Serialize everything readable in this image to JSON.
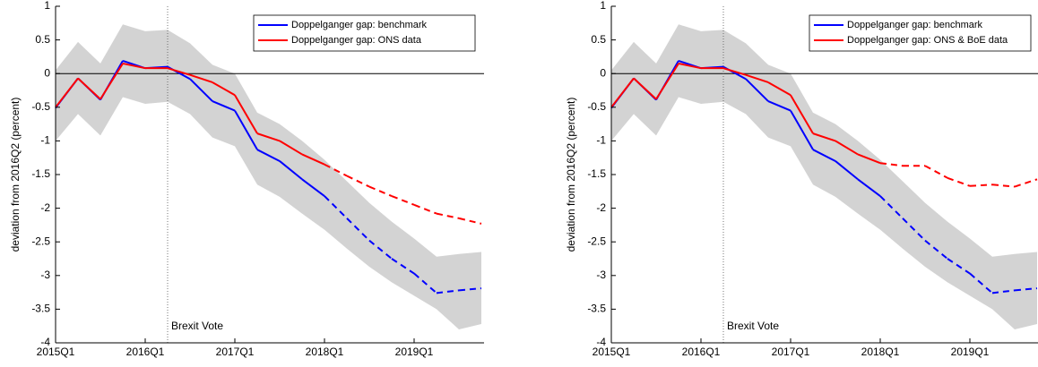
{
  "chart_data": [
    {
      "type": "line",
      "categories": [
        "2015Q1",
        null,
        null,
        null,
        "2016Q1",
        null,
        null,
        null,
        "2017Q1",
        null,
        null,
        null,
        "2018Q1",
        null,
        null,
        null,
        "2019Q1",
        null,
        null,
        null
      ],
      "ylabel": "deviation from 2016Q2 (percent)",
      "ylim": [
        -4,
        1
      ],
      "yticks": [
        -4,
        -3.5,
        -3,
        -2.5,
        -2,
        -1.5,
        -1,
        -0.5,
        0,
        0.5,
        1
      ],
      "vline": 5,
      "annotation": "Brexit Vote",
      "legend": "upper right",
      "band": {
        "color": "#d3d3d3",
        "upper": [
          0.05,
          0.47,
          0.15,
          0.73,
          0.63,
          0.65,
          0.45,
          0.13,
          0.0,
          -0.58,
          -0.75,
          -1.0,
          -1.28,
          -1.6,
          -1.92,
          -2.2,
          -2.45,
          -2.72,
          -2.68,
          -2.65
        ],
        "lower": [
          -1.0,
          -0.6,
          -0.92,
          -0.35,
          -0.45,
          -0.42,
          -0.6,
          -0.95,
          -1.08,
          -1.65,
          -1.83,
          -2.08,
          -2.32,
          -2.6,
          -2.87,
          -3.1,
          -3.3,
          -3.5,
          -3.8,
          -3.72
        ]
      },
      "series": [
        {
          "name": "Doppelganger gap: benchmark",
          "color": "#0000ff",
          "dash_from": 12,
          "values": [
            -0.51,
            -0.07,
            -0.39,
            0.19,
            0.08,
            0.1,
            -0.08,
            -0.41,
            -0.55,
            -1.13,
            -1.3,
            -1.57,
            -1.82,
            -2.15,
            -2.48,
            -2.75,
            -2.97,
            -3.26,
            -3.22,
            -3.19
          ]
        },
        {
          "name": "Doppelganger gap: ONS data",
          "color": "#ff0000",
          "dash_from": 12,
          "values": [
            -0.5,
            -0.07,
            -0.38,
            0.15,
            0.08,
            0.08,
            -0.02,
            -0.13,
            -0.32,
            -0.89,
            -1.0,
            -1.2,
            -1.35,
            -1.52,
            -1.68,
            -1.82,
            -1.95,
            -2.08,
            -2.15,
            -2.23
          ]
        }
      ]
    },
    {
      "type": "line",
      "categories": [
        "2015Q1",
        null,
        null,
        null,
        "2016Q1",
        null,
        null,
        null,
        "2017Q1",
        null,
        null,
        null,
        "2018Q1",
        null,
        null,
        null,
        "2019Q1",
        null,
        null,
        null
      ],
      "ylabel": "deviation from 2016Q2 (percent)",
      "ylim": [
        -4,
        1
      ],
      "yticks": [
        -4,
        -3.5,
        -3,
        -2.5,
        -2,
        -1.5,
        -1,
        -0.5,
        0,
        0.5,
        1
      ],
      "vline": 5,
      "annotation": "Brexit Vote",
      "legend": "upper right",
      "band": {
        "color": "#d3d3d3",
        "upper": [
          0.05,
          0.47,
          0.15,
          0.73,
          0.63,
          0.65,
          0.45,
          0.13,
          0.0,
          -0.58,
          -0.75,
          -1.0,
          -1.28,
          -1.6,
          -1.92,
          -2.2,
          -2.45,
          -2.72,
          -2.68,
          -2.65
        ],
        "lower": [
          -1.0,
          -0.6,
          -0.92,
          -0.35,
          -0.45,
          -0.42,
          -0.6,
          -0.95,
          -1.08,
          -1.65,
          -1.83,
          -2.08,
          -2.32,
          -2.6,
          -2.87,
          -3.1,
          -3.3,
          -3.5,
          -3.8,
          -3.72
        ]
      },
      "series": [
        {
          "name": "Doppelganger gap: benchmark",
          "color": "#0000ff",
          "dash_from": 12,
          "values": [
            -0.51,
            -0.07,
            -0.39,
            0.19,
            0.08,
            0.1,
            -0.08,
            -0.41,
            -0.55,
            -1.13,
            -1.3,
            -1.57,
            -1.82,
            -2.15,
            -2.48,
            -2.75,
            -2.97,
            -3.26,
            -3.22,
            -3.19
          ]
        },
        {
          "name": "Doppelganger gap: ONS & BoE data",
          "color": "#ff0000",
          "dash_from": 12,
          "values": [
            -0.5,
            -0.07,
            -0.38,
            0.15,
            0.08,
            0.08,
            -0.02,
            -0.13,
            -0.32,
            -0.89,
            -1.0,
            -1.2,
            -1.33,
            -1.37,
            -1.37,
            -1.55,
            -1.67,
            -1.65,
            -1.68,
            -1.57
          ]
        }
      ]
    }
  ]
}
